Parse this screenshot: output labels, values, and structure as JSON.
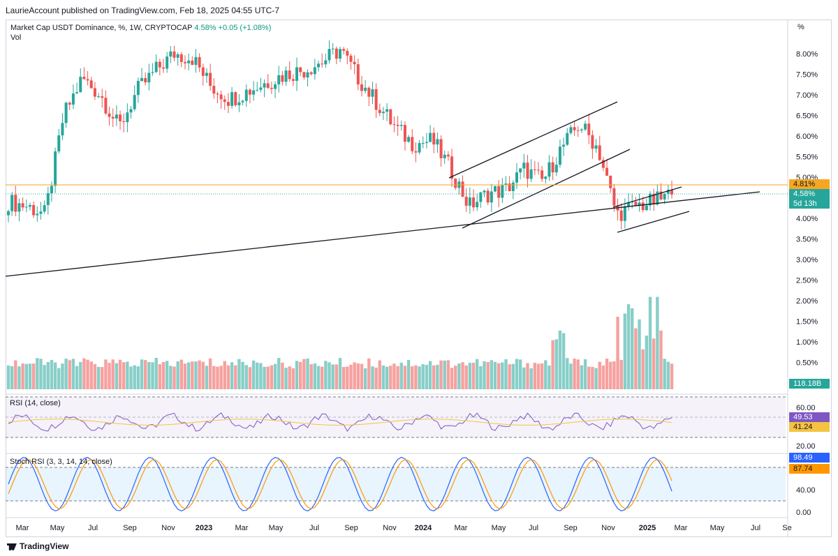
{
  "header": {
    "publisher": "LaurieAccount published on TradingView.com, Feb 18, 2025 04:55 UTC-7"
  },
  "legend": {
    "symbol": "Market Cap USDT Dominance, %, 1W, CRYPTOCAP",
    "value": "4.58%",
    "change": "+0.05 (+1.08%)",
    "vol": "Vol"
  },
  "scale_button": "%",
  "footer": {
    "brand": "TradingView"
  },
  "colors": {
    "up": "#26a69a",
    "down": "#ef5350",
    "level": "#f5a623",
    "rsi": "#7e57c2",
    "stoch_k": "#2962ff",
    "stoch_d": "#ff9800"
  },
  "chart_data": [
    {
      "type": "line",
      "title": "Market Cap USDT Dominance, %, 1W, CRYPTOCAP",
      "y_ticks": [
        "8.00%",
        "7.50%",
        "7.00%",
        "6.50%",
        "6.00%",
        "5.50%",
        "5.00%",
        "4.50%",
        "4.00%",
        "3.50%",
        "3.00%",
        "2.50%",
        "2.00%",
        "1.50%",
        "1.00%",
        "0.50%"
      ],
      "x_ticks": [
        "Mar",
        "May",
        "Jul",
        "Sep",
        "Nov",
        "2023",
        "Mar",
        "May",
        "Jul",
        "Sep",
        "Nov",
        "2024",
        "Mar",
        "May",
        "Jul",
        "Sep",
        "Nov",
        "2025",
        "Mar",
        "May",
        "Jul",
        "Se"
      ],
      "ylim": [
        0.4,
        8.4
      ],
      "price_tags": {
        "level": "4.81%",
        "last": "4.58%",
        "countdown": "5d 13h",
        "volume": "118.18B"
      },
      "series": [
        {
          "x": [
            "2022-02",
            "2022-03",
            "2022-04",
            "2022-05",
            "2022-06",
            "2022-07",
            "2022-08",
            "2022-09",
            "2022-10",
            "2022-11",
            "2022-12",
            "2023-01",
            "2023-02",
            "2023-03",
            "2023-04",
            "2023-05",
            "2023-06",
            "2023-07",
            "2023-08",
            "2023-09",
            "2023-10",
            "2023-11",
            "2023-12",
            "2024-01",
            "2024-02",
            "2024-03",
            "2024-04",
            "2024-05",
            "2024-06",
            "2024-07",
            "2024-08",
            "2024-09",
            "2024-10",
            "2024-11",
            "2024-12",
            "2025-01",
            "2025-02"
          ],
          "values": [
            4.4,
            4.3,
            4.1,
            6.5,
            7.4,
            7.0,
            6.2,
            7.1,
            7.6,
            8.0,
            7.9,
            7.2,
            6.9,
            7.1,
            7.3,
            7.5,
            7.6,
            7.8,
            8.1,
            7.4,
            6.8,
            6.2,
            5.8,
            5.9,
            5.2,
            4.3,
            4.6,
            4.7,
            5.2,
            4.9,
            5.7,
            6.3,
            5.7,
            4.1,
            4.3,
            4.4,
            4.58
          ]
        }
      ]
    },
    {
      "type": "line",
      "title": "RSI (14, close)",
      "y_ticks": [
        "60.00",
        "20.00"
      ],
      "values_tags": {
        "rsi": "49.53",
        "ma": "41.24"
      }
    },
    {
      "type": "line",
      "title": "Stoch RSI (3, 3, 14, 14, close)",
      "y_ticks": [
        "40.00",
        "0.00"
      ],
      "values_tags": {
        "k": "98.49",
        "d": "87.74"
      }
    }
  ]
}
